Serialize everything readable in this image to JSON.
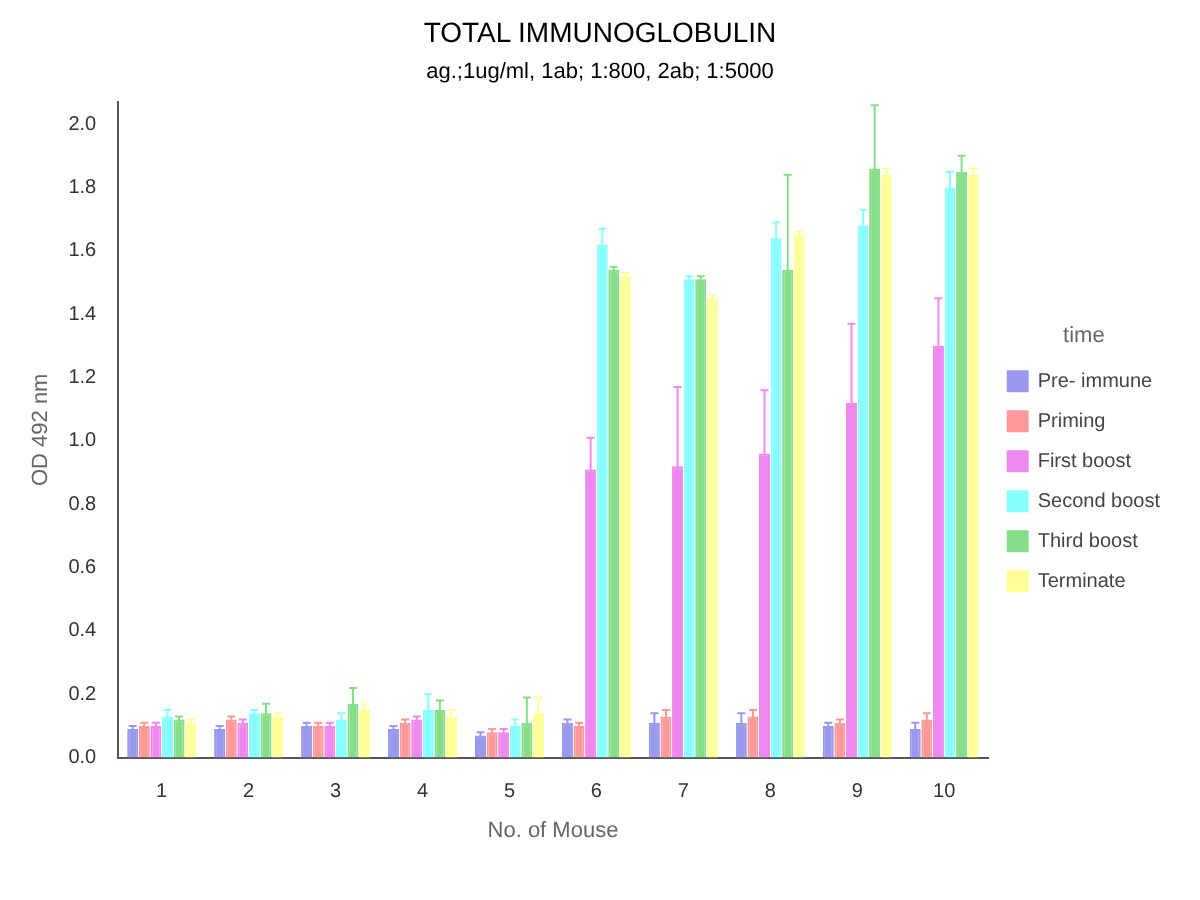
{
  "chart_data": {
    "type": "bar",
    "title": "TOTAL IMMUNOGLOBULIN",
    "subtitle": "ag.;1ug/ml,  1ab; 1:800,  2ab; 1:5000",
    "xlabel": "No. of Mouse",
    "ylabel": "OD 492 nm",
    "legend_title": "time",
    "legend": "right",
    "grid": false,
    "categories": [
      "1",
      "2",
      "3",
      "4",
      "5",
      "6",
      "7",
      "8",
      "9",
      "10"
    ],
    "ylim": [
      0,
      2.07
    ],
    "yticks": [
      {
        "value": 0,
        "label": "0.0"
      },
      {
        "value": 0.2,
        "label": "0.2"
      },
      {
        "value": 0.4,
        "label": "0.4"
      },
      {
        "value": 0.6,
        "label": "0.6"
      },
      {
        "value": 0.8,
        "label": "0.8"
      },
      {
        "value": 1,
        "label": "1.0"
      },
      {
        "value": 1.2,
        "label": "1.2"
      },
      {
        "value": 1.4,
        "label": "1.4"
      },
      {
        "value": 1.6,
        "label": "1.6"
      },
      {
        "value": 1.8,
        "label": "1.8"
      },
      {
        "value": 2,
        "label": "2.0"
      }
    ],
    "series": [
      {
        "name": "Pre- immune",
        "color": "#9999ee",
        "values": [
          0.09,
          0.09,
          0.1,
          0.09,
          0.07,
          0.11,
          0.11,
          0.11,
          0.1,
          0.09
        ],
        "errors": [
          0.01,
          0.01,
          0.01,
          0.01,
          0.01,
          0.01,
          0.03,
          0.03,
          0.01,
          0.02
        ]
      },
      {
        "name": "Priming",
        "color": "#ff9999",
        "values": [
          0.1,
          0.12,
          0.1,
          0.11,
          0.08,
          0.1,
          0.13,
          0.13,
          0.11,
          0.12
        ],
        "errors": [
          0.01,
          0.01,
          0.01,
          0.01,
          0.01,
          0.01,
          0.02,
          0.02,
          0.01,
          0.02
        ]
      },
      {
        "name": "First boost",
        "color": "#ee88ee",
        "values": [
          0.1,
          0.11,
          0.1,
          0.12,
          0.08,
          0.91,
          0.92,
          0.96,
          1.12,
          1.3
        ],
        "errors": [
          0.01,
          0.01,
          0.01,
          0.01,
          0.01,
          0.1,
          0.25,
          0.2,
          0.25,
          0.15
        ]
      },
      {
        "name": "Second boost",
        "color": "#88ffff",
        "values": [
          0.13,
          0.14,
          0.12,
          0.15,
          0.1,
          1.62,
          1.51,
          1.64,
          1.68,
          1.8
        ],
        "errors": [
          0.02,
          0.01,
          0.02,
          0.05,
          0.02,
          0.05,
          0.01,
          0.05,
          0.05,
          0.05
        ]
      },
      {
        "name": "Third boost",
        "color": "#88dd88",
        "values": [
          0.12,
          0.14,
          0.17,
          0.15,
          0.11,
          1.54,
          1.51,
          1.54,
          1.86,
          1.85
        ],
        "errors": [
          0.01,
          0.03,
          0.05,
          0.03,
          0.08,
          0.01,
          0.01,
          0.3,
          0.2,
          0.05
        ]
      },
      {
        "name": "Terminate",
        "color": "#ffff99",
        "values": [
          0.11,
          0.13,
          0.15,
          0.13,
          0.14,
          1.52,
          1.45,
          1.65,
          1.84,
          1.84
        ],
        "errors": [
          0.01,
          0.01,
          0.02,
          0.02,
          0.05,
          0.01,
          0.01,
          0.01,
          0.02,
          0.02
        ]
      }
    ]
  }
}
